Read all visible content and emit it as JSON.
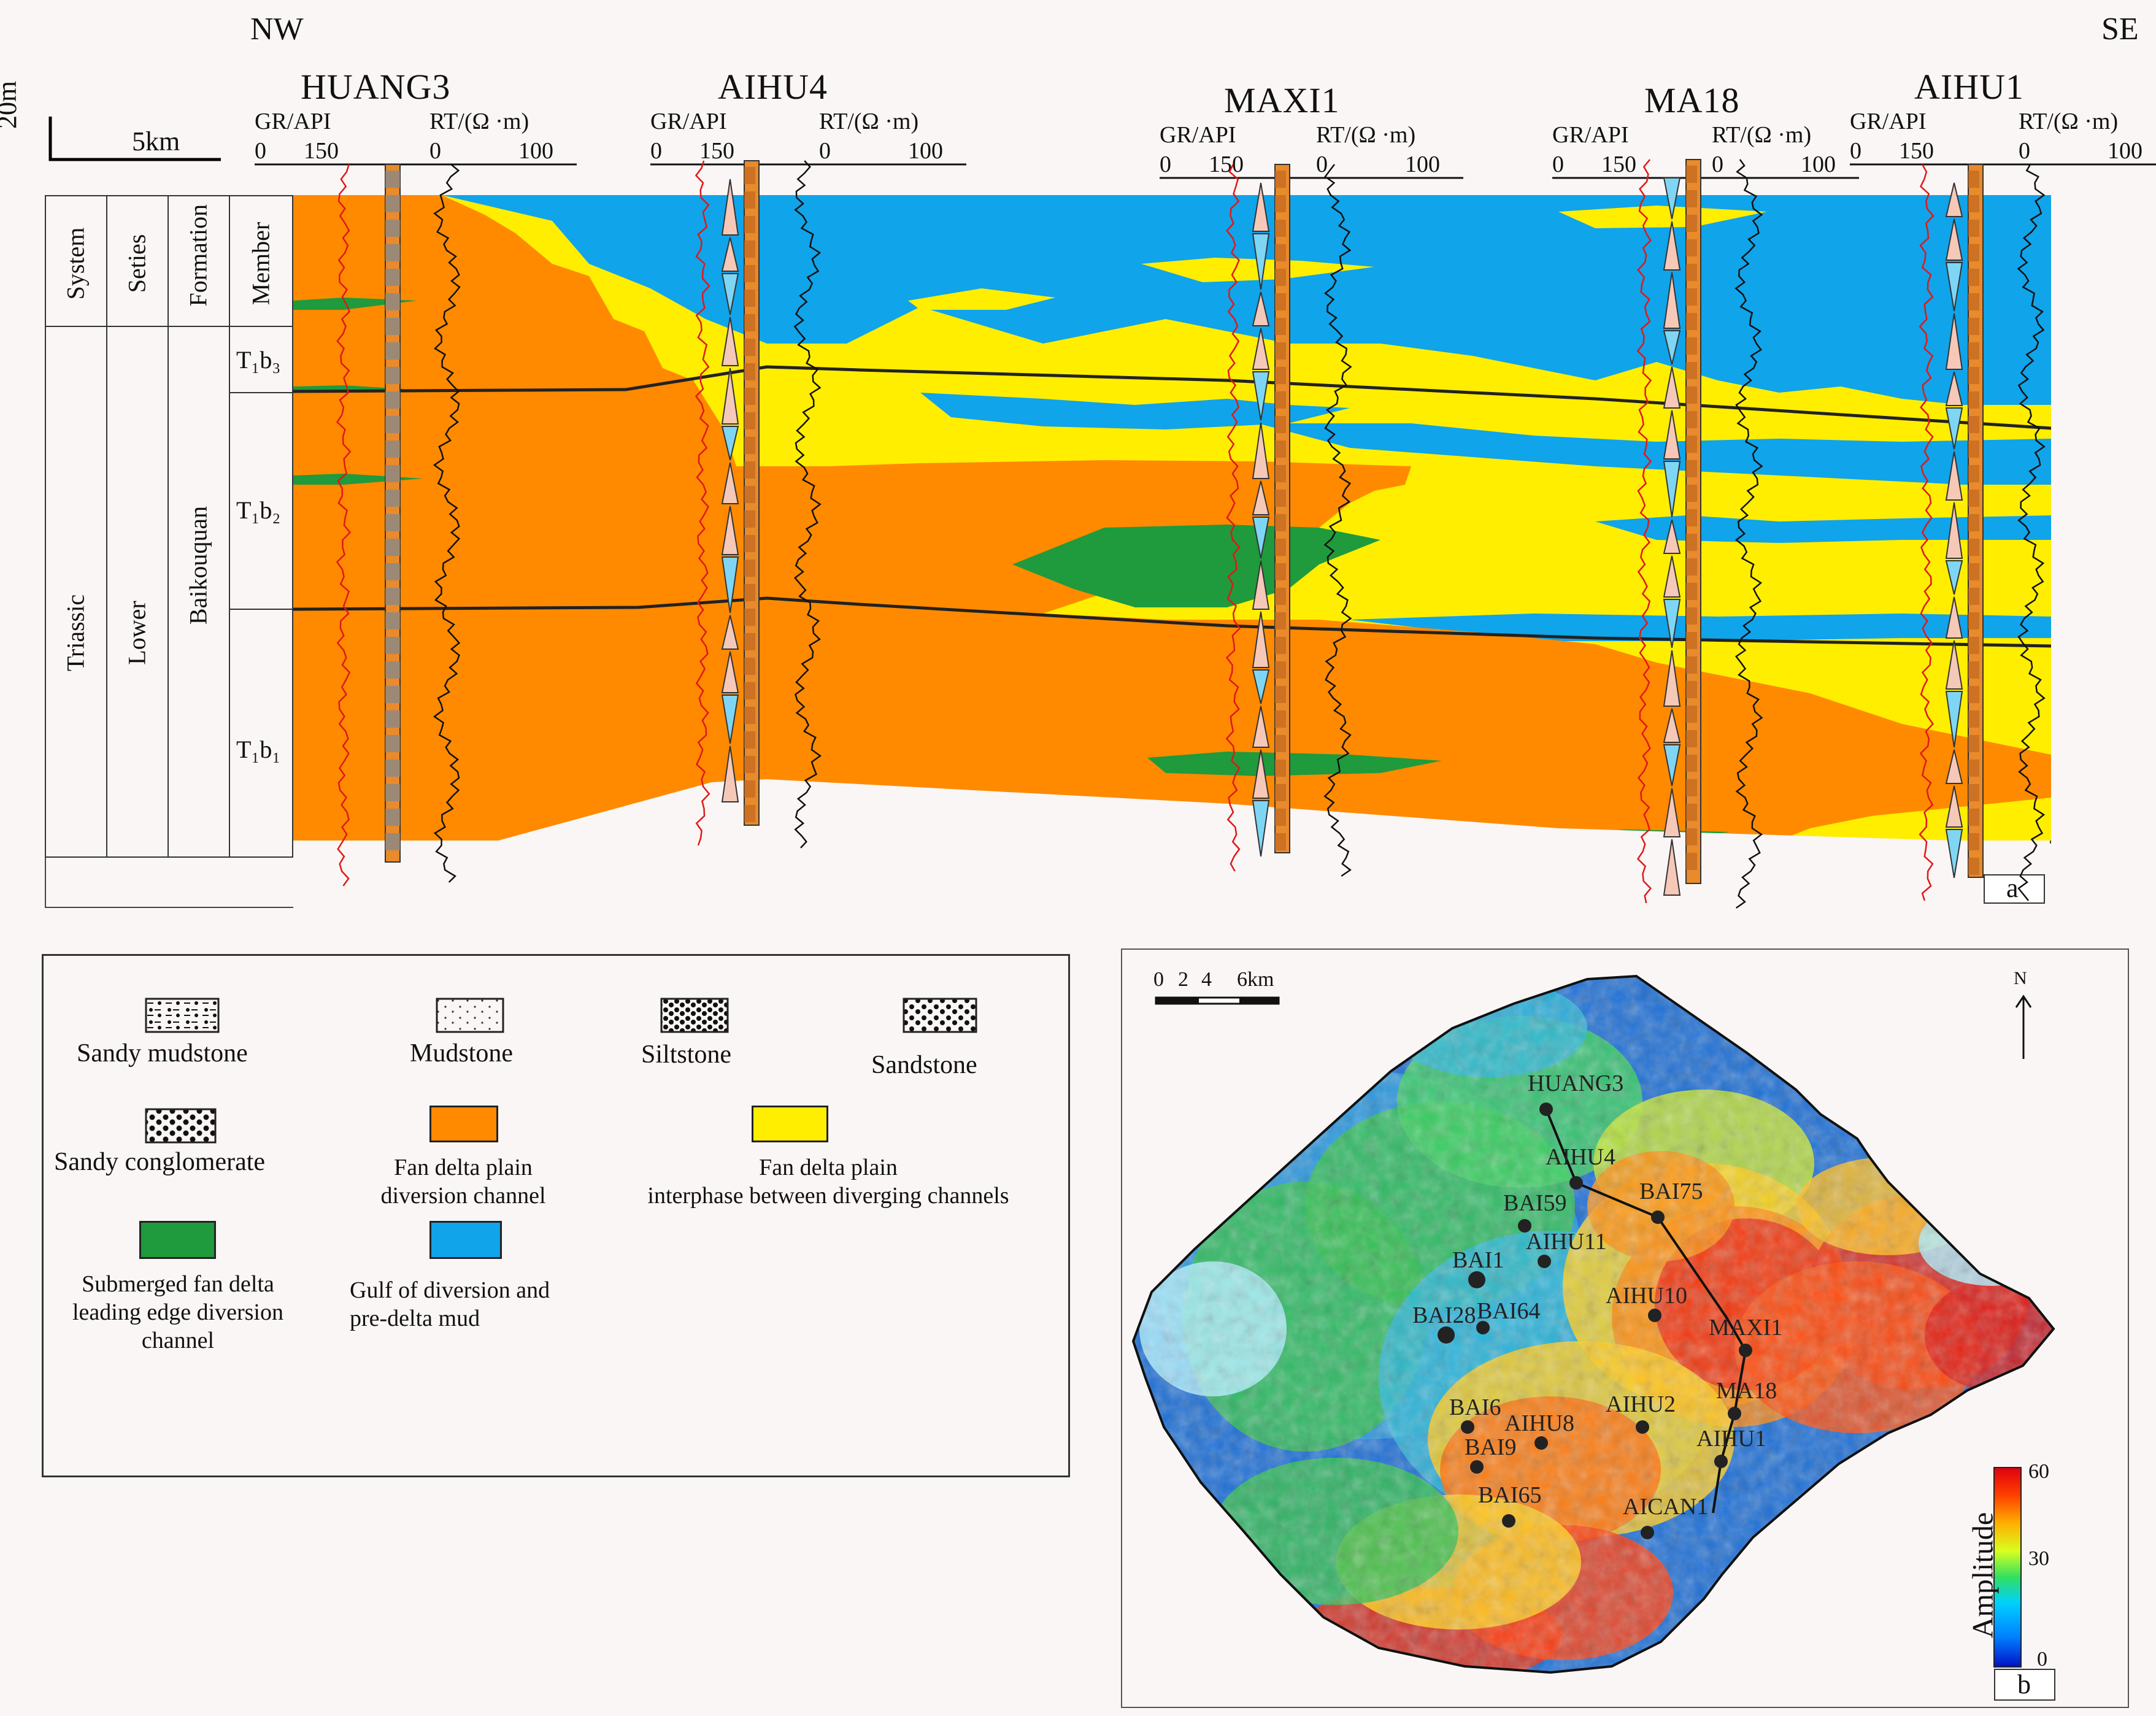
{
  "section": {
    "direction_left": "NW",
    "direction_right": "SE",
    "vertical_scale": "20m",
    "horizontal_scale": "5km",
    "panel_label": "a",
    "wells": [
      {
        "name": "HUANG3",
        "gr_label": "GR/API",
        "gr_ticks": [
          "0",
          "150"
        ],
        "rt_label": "RT/(Ω ·m)",
        "rt_ticks": [
          "0",
          "100"
        ]
      },
      {
        "name": "AIHU4",
        "gr_label": "GR/API",
        "gr_ticks": [
          "0",
          "150"
        ],
        "rt_label": "RT/(Ω ·m)",
        "rt_ticks": [
          "0",
          "100"
        ]
      },
      {
        "name": "MAXI1",
        "gr_label": "GR/API",
        "gr_ticks": [
          "0",
          "150"
        ],
        "rt_label": "RT/(Ω ·m)",
        "rt_ticks": [
          "0",
          "100"
        ]
      },
      {
        "name": "MA18",
        "gr_label": "GR/API",
        "gr_ticks": [
          "0",
          "150"
        ],
        "rt_label": "RT/(Ω ·m)",
        "rt_ticks": [
          "0",
          "100"
        ]
      },
      {
        "name": "AIHU1",
        "gr_label": "GR/API",
        "gr_ticks": [
          "0",
          "150"
        ],
        "rt_label": "RT/(Ω ·m)",
        "rt_ticks": [
          "0",
          "100"
        ]
      }
    ],
    "strat_headers": {
      "system": "System",
      "series": "Seties",
      "formation": "Formation",
      "member": "Member"
    },
    "strat_values": {
      "system": "Triassic",
      "series": "Lower",
      "formation": "Baikouquan"
    },
    "members": [
      "T₁b₃",
      "T₁b₂",
      "T₁b₁"
    ]
  },
  "legend": {
    "lithology": [
      {
        "label": "Sandy mudstone"
      },
      {
        "label": "Mudstone"
      },
      {
        "label": "Siltstone"
      },
      {
        "label": "Sandstone"
      },
      {
        "label": "Sandy conglomerate"
      }
    ],
    "facies": [
      {
        "label_1": "Fan delta plain",
        "label_2": "diversion channel",
        "color": "#ff8a00"
      },
      {
        "label_1": "Fan delta plain",
        "label_2": "interphase between diverging channels",
        "color": "#ffee00"
      },
      {
        "label_1": "Submerged fan delta",
        "label_2": "leading edge diversion",
        "label_3": "channel",
        "color": "#1f9a3c"
      },
      {
        "label_1": "Gulf of diversion and",
        "label_2": "pre-delta mud",
        "color": "#10a4ea"
      }
    ]
  },
  "map": {
    "panel_label": "b",
    "scale_ticks": [
      "0",
      "2",
      "4",
      "6km"
    ],
    "north": "N",
    "colorbar": {
      "title": "Amplitude",
      "ticks": [
        "60",
        "30",
        "0"
      ]
    },
    "wells": [
      "HUANG3",
      "AIHU4",
      "BAI75",
      "BAI59",
      "AIHU11",
      "BAI1",
      "BAI28",
      "BAI64",
      "AIHU10",
      "MAXI1",
      "MA18",
      "AIHU2",
      "AIHU8",
      "BAI6",
      "BAI9",
      "AIHU1",
      "BAI65",
      "AICAN1"
    ]
  }
}
